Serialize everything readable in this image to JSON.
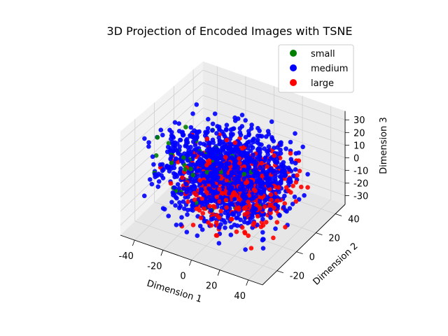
{
  "chart_data": {
    "type": "scatter",
    "title": "3D Projection of Encoded Images with TSNE",
    "projection": "3d",
    "xlabel": "Dimension 1",
    "ylabel": "Dimension 2",
    "zlabel": "Dimension 3",
    "xlim": [
      -50,
      50
    ],
    "ylim": [
      -35,
      50
    ],
    "zlim": [
      -37,
      37
    ],
    "x_ticks": [
      -40,
      -20,
      0,
      20,
      40
    ],
    "y_ticks": [
      -20,
      0,
      20,
      40
    ],
    "z_ticks": [
      -30,
      -20,
      -10,
      0,
      10,
      20,
      30
    ],
    "grid": true,
    "legend_position": "top-right",
    "series": [
      {
        "name": "small",
        "color": "#008000",
        "approx_count": 60
      },
      {
        "name": "medium",
        "color": "#0000ff",
        "approx_count": 2600
      },
      {
        "name": "large",
        "color": "#ff0000",
        "approx_count": 500
      }
    ],
    "cluster_description": "dense blob centered near origin, x about -40..35, y about -20..30, z about -30..25"
  }
}
